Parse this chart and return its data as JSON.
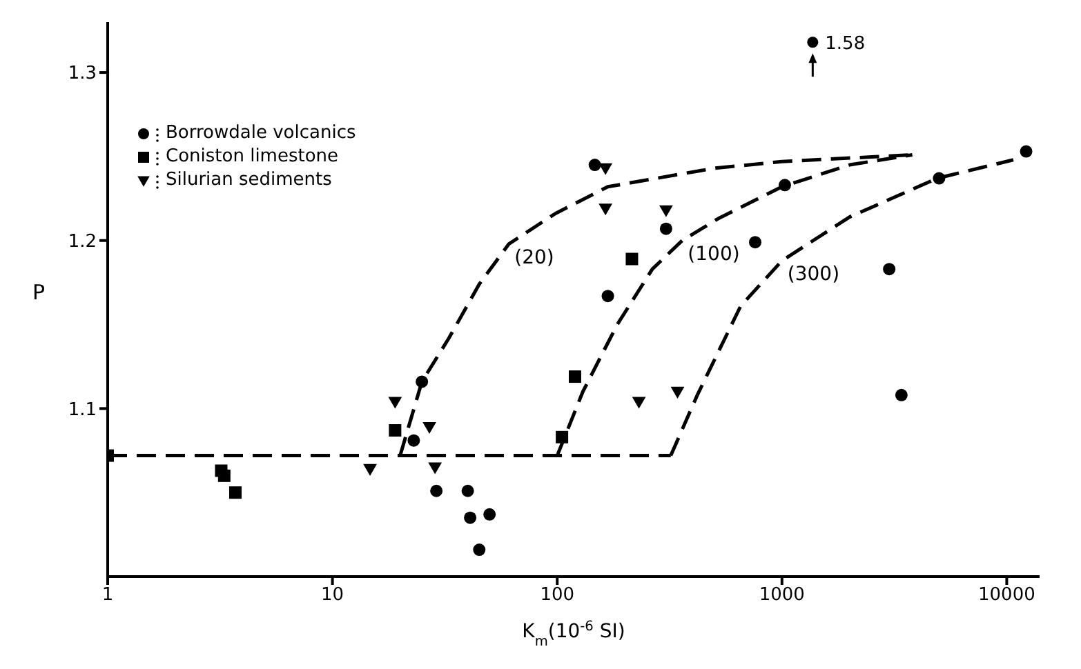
{
  "chart_data": {
    "type": "scatter",
    "xlabel": "K$_{m}$(10$^{-6}$ SI)",
    "ylabel": "P",
    "log": "x",
    "xlim": [
      1,
      14000
    ],
    "xticks": [
      1,
      10,
      100,
      1000,
      10000
    ],
    "ylim": [
      1.0,
      1.33
    ],
    "yticks": [
      1.1,
      1.2,
      1.3
    ],
    "grid": false,
    "legend": "top left",
    "series": [
      {
        "name": "Borrowdale volcanics",
        "marker": "circle",
        "color": "#000000",
        "x": [
          25,
          23,
          29,
          40,
          41,
          50,
          45,
          147,
          168,
          305,
          760,
          1030,
          3000,
          3400,
          5000,
          12200
        ],
        "values": [
          1.116,
          1.081,
          1.051,
          1.051,
          1.035,
          1.037,
          1.016,
          1.245,
          1.167,
          1.207,
          1.199,
          1.233,
          1.183,
          1.108,
          1.237,
          1.253
        ]
      },
      {
        "name": "Coniston limestone",
        "marker": "square",
        "color": "#000000",
        "x": [
          1,
          3.2,
          3.3,
          3.7,
          19,
          120,
          105,
          215
        ],
        "values": [
          1.072,
          1.063,
          1.06,
          1.05,
          1.087,
          1.119,
          1.083,
          1.189
        ]
      },
      {
        "name": "Silurian sediments",
        "marker": "triangle",
        "color": "#000000",
        "x": [
          164,
          164,
          19,
          27,
          14.7,
          28.6,
          305,
          231,
          343
        ],
        "values": [
          1.243,
          1.219,
          1.104,
          1.089,
          1.064,
          1.065,
          1.218,
          1.104,
          1.11
        ]
      },
      {
        "type": "line",
        "marker": "none",
        "line_style": "dashed",
        "color": "#000000",
        "x": [
          1,
          320
        ],
        "values": [
          1.072,
          1.072
        ]
      },
      {
        "name": "(20)",
        "type": "line",
        "marker": "none",
        "line_style": "dashed",
        "color": "#000000",
        "x": [
          20,
          25,
          33,
          45,
          61,
          98,
          168,
          500,
          1000,
          3800
        ],
        "values": [
          1.072,
          1.116,
          1.142,
          1.174,
          1.198,
          1.216,
          1.232,
          1.243,
          1.247,
          1.251
        ]
      },
      {
        "name": "(100)",
        "type": "line",
        "marker": "none",
        "line_style": "dashed",
        "color": "#000000",
        "x": [
          100,
          130,
          185,
          265,
          360,
          520,
          1000,
          2000,
          3800
        ],
        "values": [
          1.072,
          1.11,
          1.15,
          1.183,
          1.2,
          1.213,
          1.232,
          1.245,
          1.251
        ]
      },
      {
        "name": "(300)",
        "type": "line",
        "marker": "none",
        "line_style": "dashed",
        "color": "#000000",
        "x": [
          320,
          420,
          655,
          1000,
          2000,
          4900,
          10700
        ],
        "values": [
          1.072,
          1.108,
          1.161,
          1.188,
          1.214,
          1.237,
          1.248
        ]
      }
    ],
    "annotations": [
      {
        "text": "1.58",
        "x": 1370,
        "y": 1.318
      }
    ]
  }
}
